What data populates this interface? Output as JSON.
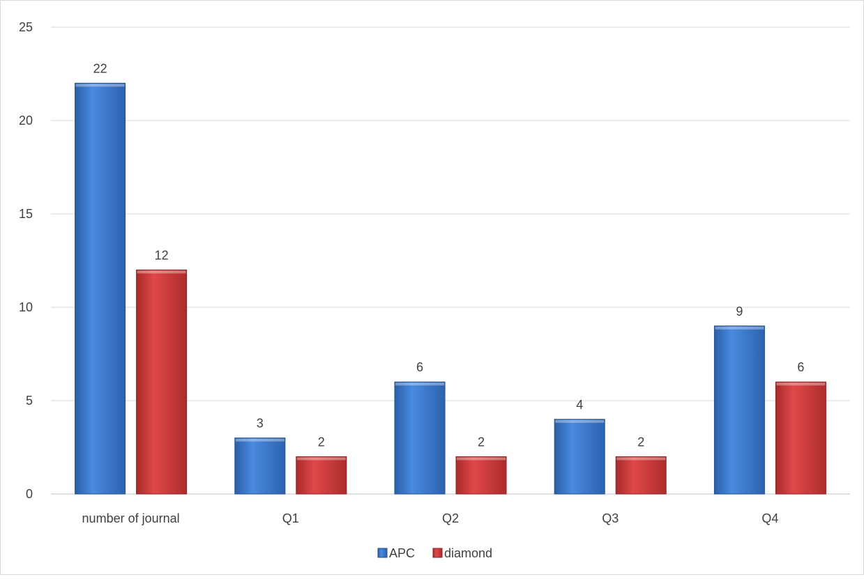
{
  "chart_data": {
    "type": "bar",
    "title": "",
    "xlabel": "",
    "ylabel": "",
    "categories": [
      "number of journal",
      "Q1",
      "Q2",
      "Q3",
      "Q4"
    ],
    "series": [
      {
        "name": "APC",
        "values": [
          22,
          3,
          6,
          4,
          9
        ],
        "color": "#3a7bd5"
      },
      {
        "name": "diamond",
        "values": [
          12,
          2,
          2,
          2,
          6
        ],
        "color": "#d43a3a"
      }
    ],
    "ylim": [
      0,
      25
    ],
    "yticks": [
      0,
      5,
      10,
      15,
      20,
      25
    ],
    "grid": true,
    "legend_position": "bottom-center",
    "data_labels": true
  }
}
